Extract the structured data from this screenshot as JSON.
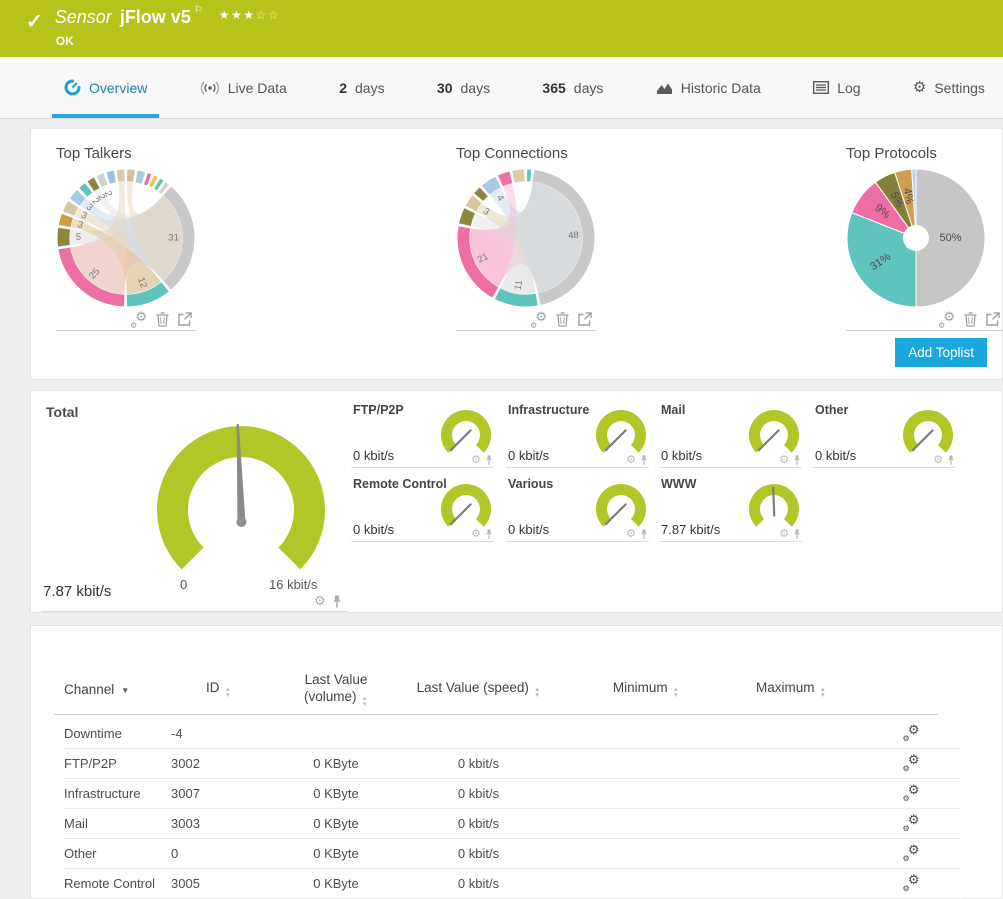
{
  "colors": {
    "header_bg": "#b7c31b",
    "accent_blue": "#1ba6dc",
    "tab_active_blue": "#2aa6da",
    "gauge_green": "#b3c628",
    "needle_gray": "#8a8a8a"
  },
  "icons": {
    "check": "✓",
    "flag": "⚐",
    "gear": "⚙",
    "sort_up": "▲",
    "sort_down": "▼",
    "stars_on": "★★★",
    "stars_off": "☆☆"
  },
  "header": {
    "kind": "Sensor",
    "name": "jFlow v5",
    "status": "OK",
    "stars_filled": 3,
    "stars_total": 5
  },
  "tabs": [
    {
      "label": "Overview",
      "active": true
    },
    {
      "label": "Live Data"
    },
    {
      "num": "2",
      "label": "days"
    },
    {
      "num": "30",
      "label": "days"
    },
    {
      "num": "365",
      "label": "days"
    },
    {
      "label": "Historic Data"
    },
    {
      "label": "Log"
    },
    {
      "label": "Settings"
    }
  ],
  "toplists": {
    "add_button": "Add Toplist",
    "panels": [
      {
        "title": "Top Talkers",
        "chart": {
          "type": "chord",
          "segments": [
            {
              "value": 2,
              "color": "#d9c09a"
            },
            {
              "value": 2,
              "color": "#aac9e4"
            },
            {
              "value": 1,
              "color": "#ee6ba5"
            },
            {
              "value": 1,
              "color": "#e3c93f"
            },
            {
              "value": 1,
              "color": "#62c3bd"
            },
            {
              "value": 1,
              "color": "#cfcfcf"
            },
            {
              "value": 31,
              "color": "#c9c9c9",
              "label": "31"
            },
            {
              "value": 12,
              "color": "#5fc4bc",
              "label": "12"
            },
            {
              "value": 25,
              "color": "#ed6fa6",
              "label": "25"
            },
            {
              "value": 5,
              "color": "#8b873f",
              "label": "5"
            },
            {
              "value": 3,
              "color": "#cf9c42",
              "label": "3"
            },
            {
              "value": 3,
              "color": "#d9c5a0",
              "label": "3"
            },
            {
              "value": 3,
              "color": "#a9c8e5",
              "label": "3"
            },
            {
              "value": 2,
              "color": "#5fc4bc",
              "label": "2"
            },
            {
              "value": 2,
              "color": "#8b873f",
              "label": "2"
            },
            {
              "value": 2,
              "color": "#d0d0d0",
              "label": "2"
            },
            {
              "value": 2,
              "color": "#9fc1e0"
            },
            {
              "value": 2,
              "color": "#dcc9a6"
            }
          ],
          "ribbons": [
            {
              "a": 8,
              "b": 6,
              "color": "#f5b3d2",
              "opacity": 0.6
            },
            {
              "a": 7,
              "b": 6,
              "color": "#dcdcdc",
              "opacity": 0.65
            },
            {
              "a": 9,
              "b": 6,
              "color": "#dcdcdc",
              "opacity": 0.5
            },
            {
              "a": 11,
              "b": 6,
              "color": "#e6d8bc",
              "opacity": 0.6
            },
            {
              "a": 12,
              "b": 6,
              "color": "#c9dcf0",
              "opacity": 0.55
            },
            {
              "a": 10,
              "b": 7,
              "color": "#e0bd80",
              "opacity": 0.5
            },
            {
              "a": 17,
              "b": 8,
              "color": "#e6d8bc",
              "opacity": 0.5
            },
            {
              "a": 14,
              "b": 6,
              "color": "#dcdcdc",
              "opacity": 0.4
            },
            {
              "a": 0,
              "b": 6,
              "color": "#e6d8bc",
              "opacity": 0.5
            }
          ]
        }
      },
      {
        "title": "Top Connections",
        "chart": {
          "type": "chord",
          "segments": [
            {
              "value": 1,
              "color": "#5fc4bc"
            },
            {
              "value": 48,
              "color": "#c9c9c9",
              "label": "48"
            },
            {
              "value": 11,
              "color": "#5fc4bc",
              "label": "11"
            },
            {
              "value": 21,
              "color": "#ed6fa6",
              "label": "21"
            },
            {
              "value": 4,
              "color": "#8b873f"
            },
            {
              "value": 3,
              "color": "#d9c5a0",
              "label": "3"
            },
            {
              "value": 2,
              "color": "#8b873f"
            },
            {
              "value": 4,
              "color": "#a9c8e5",
              "label": "4"
            },
            {
              "value": 3,
              "color": "#ed6fa6"
            },
            {
              "value": 3,
              "color": "#dcc9a6"
            }
          ],
          "ribbons": [
            {
              "a": 3,
              "b": 1,
              "color": "#f5b3d2",
              "opacity": 0.6
            },
            {
              "a": 2,
              "b": 1,
              "color": "#dcdcdc",
              "opacity": 0.6
            },
            {
              "a": 5,
              "b": 1,
              "color": "#e6d8bc",
              "opacity": 0.6
            },
            {
              "a": 7,
              "b": 1,
              "color": "#c9dcf0",
              "opacity": 0.55
            },
            {
              "a": 8,
              "b": 3,
              "color": "#f5b3d2",
              "opacity": 0.45
            },
            {
              "a": 4,
              "b": 1,
              "color": "#dcdcdc",
              "opacity": 0.4
            }
          ]
        }
      },
      {
        "title": "Top Protocols",
        "chart": {
          "type": "pie",
          "slices": [
            {
              "value": 50,
              "color": "#c6c6c6",
              "label": "50%"
            },
            {
              "value": 31,
              "color": "#5fc4bc",
              "label": "31%"
            },
            {
              "value": 9,
              "color": "#ed6fa6",
              "label": "9%"
            },
            {
              "value": 5,
              "color": "#84813c",
              "label": "5%"
            },
            {
              "value": 4,
              "color": "#d09e4e",
              "label": "4%"
            },
            {
              "value": 1,
              "color": "#b9d2e8"
            }
          ]
        }
      }
    ]
  },
  "gauges": {
    "total": {
      "label": "Total",
      "value_display": "7.87 kbit/s",
      "min_label": "0",
      "max_label": "16 kbit/s",
      "chart": {
        "type": "gauge",
        "value": 7.87,
        "max": 16
      }
    },
    "channels": [
      {
        "label": "FTP/P2P",
        "value_display": "0 kbit/s",
        "chart": {
          "type": "gauge",
          "value": 0,
          "max": 16
        }
      },
      {
        "label": "Infrastructure",
        "value_display": "0 kbit/s",
        "chart": {
          "type": "gauge",
          "value": 0,
          "max": 16
        }
      },
      {
        "label": "Mail",
        "value_display": "0 kbit/s",
        "chart": {
          "type": "gauge",
          "value": 0,
          "max": 16
        }
      },
      {
        "label": "Other",
        "value_display": "0 kbit/s",
        "chart": {
          "type": "gauge",
          "value": 0,
          "max": 16
        }
      },
      {
        "label": "Remote Control",
        "value_display": "0 kbit/s",
        "chart": {
          "type": "gauge",
          "value": 0,
          "max": 16
        }
      },
      {
        "label": "Various",
        "value_display": "0 kbit/s",
        "chart": {
          "type": "gauge",
          "value": 0,
          "max": 16
        }
      },
      {
        "label": "WWW",
        "value_display": "7.87 kbit/s",
        "chart": {
          "type": "gauge",
          "value": 7.87,
          "max": 16
        }
      }
    ]
  },
  "table": {
    "columns": [
      {
        "label": "Channel"
      },
      {
        "label": "ID"
      },
      {
        "label": "Last Value",
        "label2": "(volume)"
      },
      {
        "label": "Last Value (speed)"
      },
      {
        "label": "Minimum"
      },
      {
        "label": "Maximum"
      }
    ],
    "rows": [
      {
        "channel": "Downtime",
        "id": "-4",
        "volume": "",
        "speed": "",
        "min": "",
        "max": ""
      },
      {
        "channel": "FTP/P2P",
        "id": "3002",
        "volume": "0 KByte",
        "speed": "0 kbit/s",
        "min": "",
        "max": ""
      },
      {
        "channel": "Infrastructure",
        "id": "3007",
        "volume": "0 KByte",
        "speed": "0 kbit/s",
        "min": "",
        "max": ""
      },
      {
        "channel": "Mail",
        "id": "3003",
        "volume": "0 KByte",
        "speed": "0 kbit/s",
        "min": "",
        "max": ""
      },
      {
        "channel": "Other",
        "id": "0",
        "volume": "0 KByte",
        "speed": "0 kbit/s",
        "min": "",
        "max": ""
      },
      {
        "channel": "Remote Control",
        "id": "3005",
        "volume": "0 KByte",
        "speed": "0 kbit/s",
        "min": "",
        "max": ""
      }
    ]
  }
}
